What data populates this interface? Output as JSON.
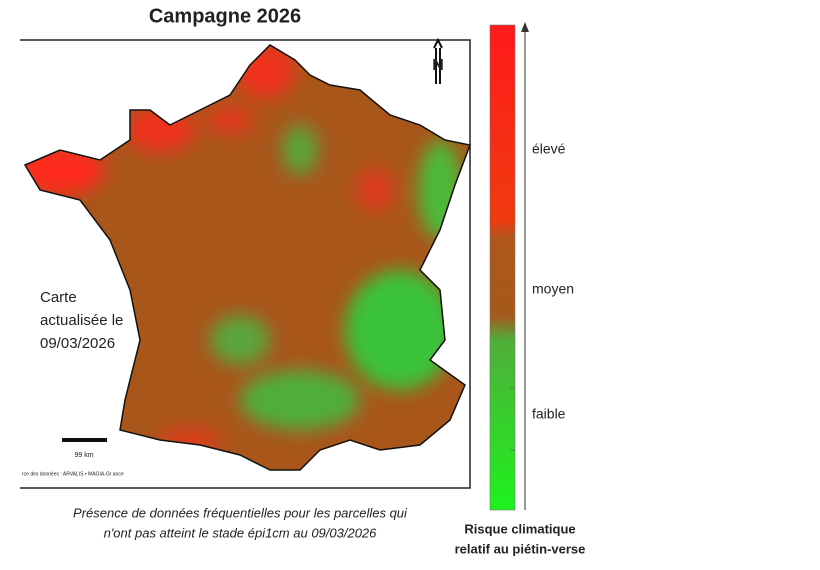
{
  "header": {
    "title": "Campagne 2026"
  },
  "map": {
    "north": "N",
    "date_note": [
      "Carte",
      "actualisée le",
      "09/03/2026"
    ],
    "scale_label": "99 km",
    "source": "rce des données : ARVALIS • MAGIA-Gr ance"
  },
  "legend": {
    "levels": [
      "élevé",
      "moyen",
      "faible"
    ],
    "title": [
      "Risque climatique",
      "relatif au piétin-verse"
    ]
  },
  "caption": [
    "Présence de données fréquentielles pour les parcelles qui",
    "n'ont pas atteint le stade épi1cm au 09/03/2026"
  ]
}
